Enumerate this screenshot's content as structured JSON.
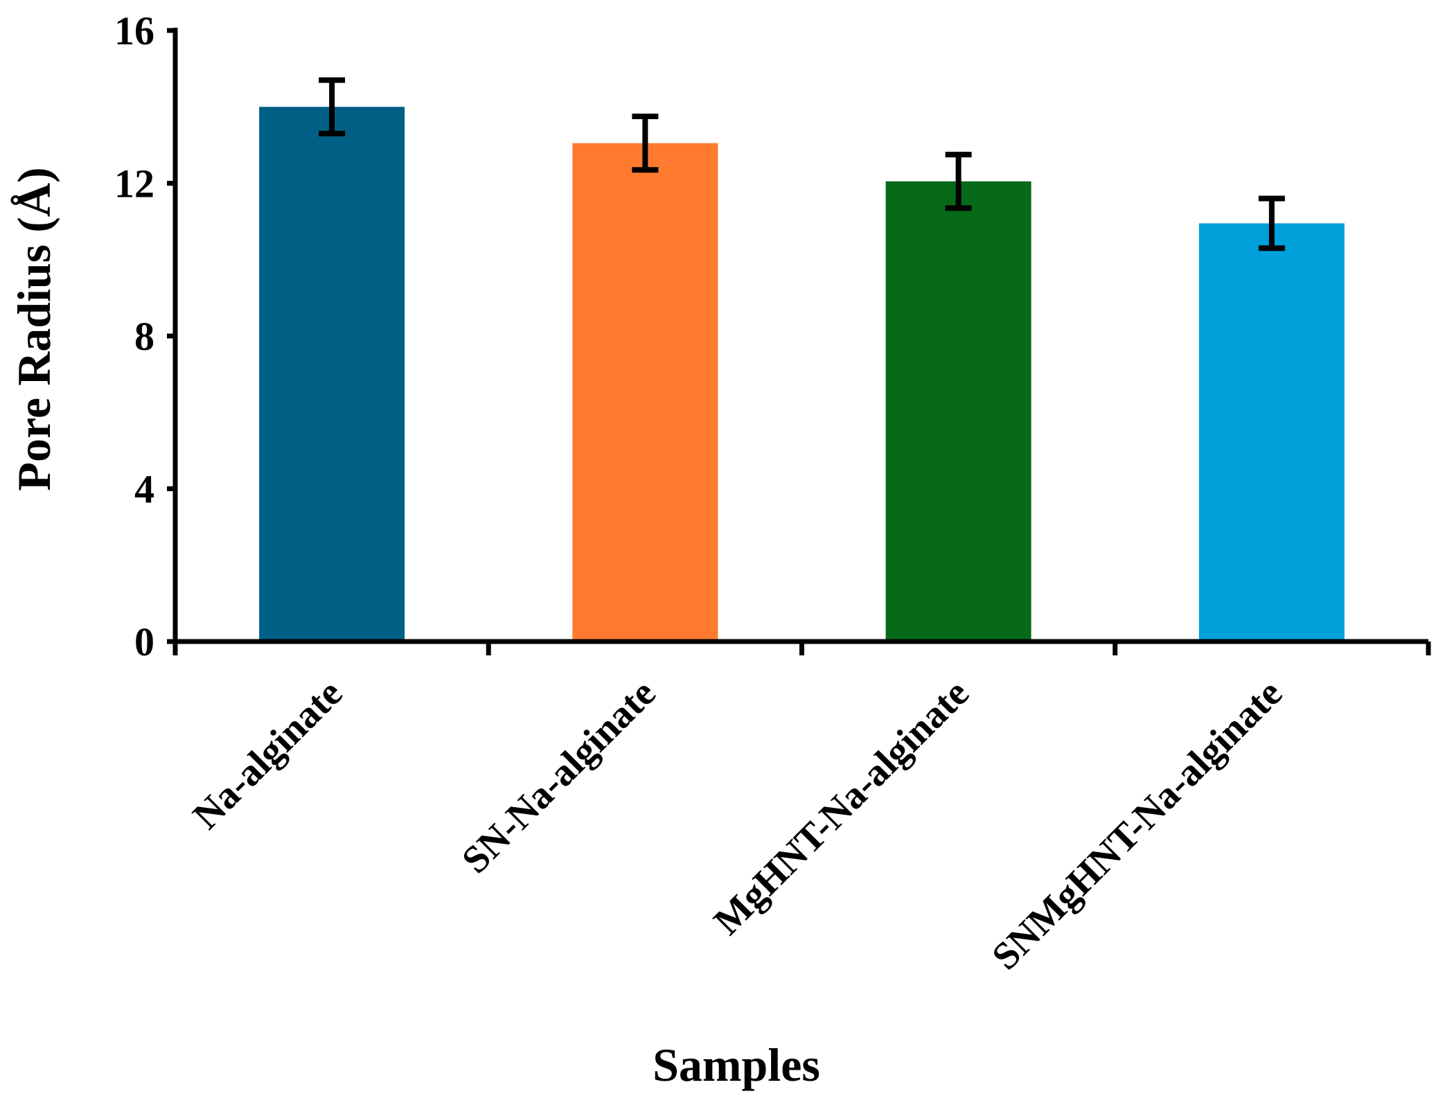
{
  "chart_data": {
    "type": "bar",
    "title": "",
    "xlabel": "Samples",
    "ylabel": "Pore Radius (Å)",
    "ylim": [
      0,
      16
    ],
    "yticks": [
      0,
      4,
      8,
      12,
      16
    ],
    "grid": false,
    "categories": [
      "Na-alginate",
      "SN-Na-alginate",
      "MgHNT-Na-alginate",
      "SNMgHNT-Na-alginate"
    ],
    "values": [
      14.0,
      13.05,
      12.05,
      10.95
    ],
    "errors": [
      0.7,
      0.7,
      0.7,
      0.65
    ],
    "colors": [
      "#005F84",
      "#FF7A2F",
      "#066A19",
      "#00A0DB"
    ]
  }
}
